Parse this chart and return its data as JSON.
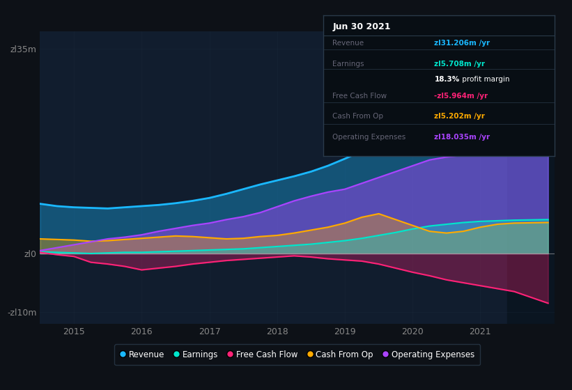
{
  "bg_color": "#0d1117",
  "plot_bg_color": "#111d2e",
  "xlim": [
    2014.5,
    2022.1
  ],
  "ylim": [
    -12,
    38
  ],
  "ytick_positions": [
    -10,
    0,
    35
  ],
  "ytick_labels": [
    "-zl10m",
    "zl0",
    "zl35m"
  ],
  "xtick_positions": [
    2015,
    2016,
    2017,
    2018,
    2019,
    2020,
    2021
  ],
  "xtick_labels": [
    "2015",
    "2016",
    "2017",
    "2018",
    "2019",
    "2020",
    "2021"
  ],
  "series_colors": {
    "Revenue": "#1ab8ff",
    "Earnings": "#00e6cc",
    "FreeCashFlow": "#ff2277",
    "CashFromOp": "#ffaa00",
    "OperatingExpenses": "#aa44ff"
  },
  "legend_items": [
    {
      "label": "Revenue",
      "color": "#1ab8ff"
    },
    {
      "label": "Earnings",
      "color": "#00e6cc"
    },
    {
      "label": "Free Cash Flow",
      "color": "#ff2277"
    },
    {
      "label": "Cash From Op",
      "color": "#ffaa00"
    },
    {
      "label": "Operating Expenses",
      "color": "#aa44ff"
    }
  ],
  "highlight_x": 2021.5,
  "highlight_color": "#1a2a3a",
  "revenue_x": [
    2014.5,
    2014.75,
    2015.0,
    2015.25,
    2015.5,
    2015.75,
    2016.0,
    2016.25,
    2016.5,
    2016.75,
    2017.0,
    2017.25,
    2017.5,
    2017.75,
    2018.0,
    2018.25,
    2018.5,
    2018.75,
    2019.0,
    2019.25,
    2019.5,
    2019.75,
    2020.0,
    2020.25,
    2020.5,
    2020.75,
    2021.0,
    2021.25,
    2021.5,
    2021.75,
    2022.0
  ],
  "revenue_y": [
    8.5,
    8.1,
    7.9,
    7.8,
    7.7,
    7.9,
    8.1,
    8.3,
    8.6,
    9.0,
    9.5,
    10.2,
    11.0,
    11.8,
    12.5,
    13.2,
    14.0,
    15.0,
    16.2,
    17.5,
    19.0,
    20.5,
    22.0,
    24.0,
    25.8,
    27.0,
    28.5,
    29.8,
    31.2,
    33.0,
    34.5
  ],
  "earnings_x": [
    2014.5,
    2014.75,
    2015.0,
    2015.25,
    2015.5,
    2015.75,
    2016.0,
    2016.25,
    2016.5,
    2016.75,
    2017.0,
    2017.25,
    2017.5,
    2017.75,
    2018.0,
    2018.25,
    2018.5,
    2018.75,
    2019.0,
    2019.25,
    2019.5,
    2019.75,
    2020.0,
    2020.25,
    2020.5,
    2020.75,
    2021.0,
    2021.25,
    2021.5,
    2021.75,
    2022.0
  ],
  "earnings_y": [
    0.3,
    0.2,
    0.1,
    0.0,
    0.1,
    0.2,
    0.2,
    0.3,
    0.4,
    0.5,
    0.6,
    0.7,
    0.8,
    1.0,
    1.2,
    1.4,
    1.6,
    1.9,
    2.2,
    2.6,
    3.1,
    3.6,
    4.2,
    4.7,
    5.0,
    5.3,
    5.5,
    5.6,
    5.7,
    5.75,
    5.8
  ],
  "fcf_x": [
    2014.5,
    2014.75,
    2015.0,
    2015.25,
    2015.5,
    2015.75,
    2016.0,
    2016.25,
    2016.5,
    2016.75,
    2017.0,
    2017.25,
    2017.5,
    2017.75,
    2018.0,
    2018.25,
    2018.5,
    2018.75,
    2019.0,
    2019.25,
    2019.5,
    2019.75,
    2020.0,
    2020.25,
    2020.5,
    2020.75,
    2021.0,
    2021.25,
    2021.5,
    2021.75,
    2022.0
  ],
  "fcf_y": [
    0.2,
    -0.2,
    -0.5,
    -1.5,
    -1.8,
    -2.2,
    -2.8,
    -2.5,
    -2.2,
    -1.8,
    -1.5,
    -1.2,
    -1.0,
    -0.8,
    -0.6,
    -0.4,
    -0.6,
    -0.9,
    -1.1,
    -1.3,
    -1.8,
    -2.5,
    -3.2,
    -3.8,
    -4.5,
    -5.0,
    -5.5,
    -6.0,
    -6.5,
    -7.5,
    -8.5
  ],
  "cashfromop_x": [
    2014.5,
    2014.75,
    2015.0,
    2015.25,
    2015.5,
    2015.75,
    2016.0,
    2016.25,
    2016.5,
    2016.75,
    2017.0,
    2017.25,
    2017.5,
    2017.75,
    2018.0,
    2018.25,
    2018.5,
    2018.75,
    2019.0,
    2019.25,
    2019.5,
    2019.75,
    2020.0,
    2020.25,
    2020.5,
    2020.75,
    2021.0,
    2021.25,
    2021.5,
    2021.75,
    2022.0
  ],
  "cashfromop_y": [
    2.5,
    2.4,
    2.3,
    2.1,
    2.2,
    2.4,
    2.6,
    2.8,
    3.0,
    2.9,
    2.7,
    2.5,
    2.6,
    2.9,
    3.1,
    3.5,
    4.0,
    4.5,
    5.2,
    6.2,
    6.8,
    5.8,
    4.8,
    3.8,
    3.5,
    3.8,
    4.5,
    5.0,
    5.2,
    5.25,
    5.3
  ],
  "opex_x": [
    2014.5,
    2014.75,
    2015.0,
    2015.25,
    2015.5,
    2015.75,
    2016.0,
    2016.25,
    2016.5,
    2016.75,
    2017.0,
    2017.25,
    2017.5,
    2017.75,
    2018.0,
    2018.25,
    2018.5,
    2018.75,
    2019.0,
    2019.25,
    2019.5,
    2019.75,
    2020.0,
    2020.25,
    2020.5,
    2020.75,
    2021.0,
    2021.25,
    2021.5,
    2021.75,
    2022.0
  ],
  "opex_y": [
    0.5,
    1.0,
    1.5,
    2.0,
    2.5,
    2.8,
    3.2,
    3.8,
    4.3,
    4.8,
    5.2,
    5.8,
    6.3,
    7.0,
    8.0,
    9.0,
    9.8,
    10.5,
    11.0,
    12.0,
    13.0,
    14.0,
    15.0,
    16.0,
    16.5,
    16.8,
    17.0,
    17.5,
    18.0,
    18.5,
    18.5
  ]
}
